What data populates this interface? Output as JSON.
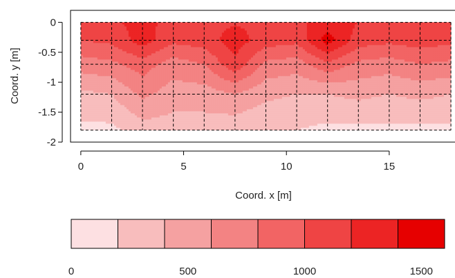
{
  "chart_data": {
    "type": "heatmap",
    "title": "",
    "xlabel": "Coord. x [m]",
    "ylabel": "Coord. y [m]",
    "xlim": [
      -0.5,
      18.3
    ],
    "ylim": [
      -2,
      0.2
    ],
    "x_ticks": [
      "0",
      "5",
      "10",
      "15"
    ],
    "x_tick_values": [
      0,
      5,
      10,
      15
    ],
    "y_ticks": [
      "0",
      "-0.5",
      "-1",
      "-1.5",
      "-2"
    ],
    "y_tick_values": [
      0,
      -0.5,
      -1,
      -1.5,
      -2
    ],
    "grid_x": [
      0,
      1.5,
      3,
      4.5,
      6,
      7.5,
      9,
      10.5,
      12,
      13.5,
      15,
      16.5,
      18
    ],
    "grid_y": [
      0,
      -0.3,
      -0.7,
      -1.2,
      -1.8
    ],
    "grid_style": "dashed",
    "x": [
      0,
      1.5,
      3,
      4.5,
      6,
      7.5,
      9,
      10.5,
      12,
      13.5,
      15,
      16.5,
      18
    ],
    "y": [
      0,
      -0.3,
      -0.7,
      -1.2,
      -1.8
    ],
    "z": [
      [
        1150,
        1180,
        1250,
        1150,
        1150,
        1180,
        1150,
        1150,
        1300,
        1200,
        1150,
        1150,
        1150
      ],
      [
        1000,
        1050,
        1300,
        1050,
        1100,
        1300,
        1100,
        1050,
        1500,
        1100,
        1050,
        1100,
        1050
      ],
      [
        700,
        750,
        900,
        700,
        800,
        1150,
        750,
        700,
        950,
        750,
        700,
        800,
        750
      ],
      [
        350,
        400,
        650,
        500,
        500,
        600,
        450,
        400,
        400,
        450,
        400,
        450,
        400
      ],
      [
        150,
        150,
        300,
        300,
        300,
        250,
        200,
        200,
        150,
        150,
        150,
        150,
        150
      ]
    ],
    "color_levels": [
      0,
      200,
      400,
      600,
      800,
      1000,
      1200,
      1400,
      1600
    ],
    "colors": [
      "#fde0e2",
      "#f8bdbd",
      "#f5a1a1",
      "#f38383",
      "#f26464",
      "#ef4444",
      "#ec2424",
      "#e60000"
    ],
    "colorbar": {
      "ticks": [
        "0",
        "500",
        "1000",
        "1500"
      ],
      "tick_values": [
        0,
        500,
        1000,
        1500
      ],
      "placement": "bottom"
    }
  }
}
